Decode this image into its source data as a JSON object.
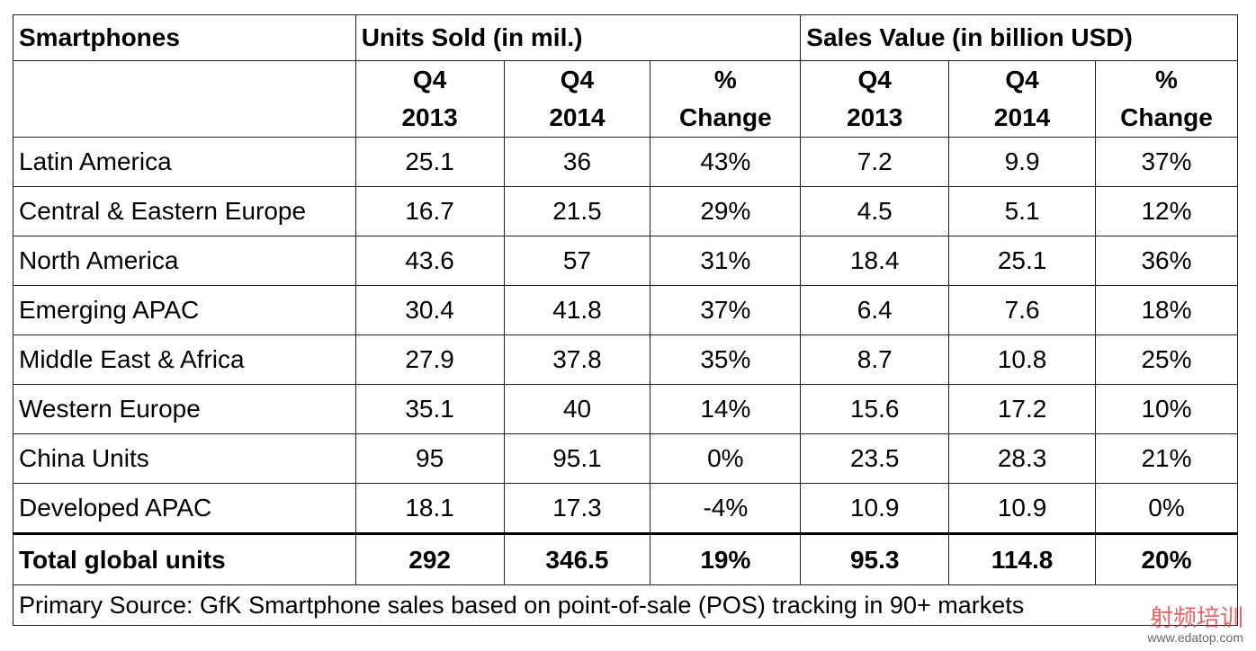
{
  "header": {
    "title": "Smartphones",
    "groups": [
      "Units Sold (in mil.)",
      "Sales Value (in billion USD)"
    ]
  },
  "subheaders": [
    [
      "Q4",
      "2013"
    ],
    [
      "Q4",
      "2014"
    ],
    [
      "%",
      "Change"
    ],
    [
      "Q4",
      "2013"
    ],
    [
      "Q4",
      "2014"
    ],
    [
      "%",
      "Change"
    ]
  ],
  "table": {
    "rows": [
      [
        "Latin America",
        "25.1",
        "36",
        "43%",
        "7.2",
        "9.9",
        "37%"
      ],
      [
        "Central & Eastern Europe",
        "16.7",
        "21.5",
        "29%",
        "4.5",
        "5.1",
        "12%"
      ],
      [
        "North America",
        "43.6",
        "57",
        "31%",
        "18.4",
        "25.1",
        "36%"
      ],
      [
        "Emerging APAC",
        "30.4",
        "41.8",
        "37%",
        "6.4",
        "7.6",
        "18%"
      ],
      [
        "Middle East & Africa",
        "27.9",
        "37.8",
        "35%",
        "8.7",
        "10.8",
        "25%"
      ],
      [
        "Western Europe",
        "35.1",
        "40",
        "14%",
        "15.6",
        "17.2",
        "10%"
      ],
      [
        "China Units",
        "95",
        "95.1",
        "0%",
        "23.5",
        "28.3",
        "21%"
      ],
      [
        "Developed APAC",
        "18.1",
        "17.3",
        "-4%",
        "10.9",
        "10.9",
        "0%"
      ]
    ],
    "total": [
      "Total global units",
      "292",
      "346.5",
      "19%",
      "95.3",
      "114.8",
      "20%"
    ]
  },
  "footnote": "Primary Source: GfK Smartphone sales based on point-of-sale (POS) tracking in 90+ markets",
  "watermark": {
    "brand": "射频培训",
    "url": "www.edatop.com"
  }
}
